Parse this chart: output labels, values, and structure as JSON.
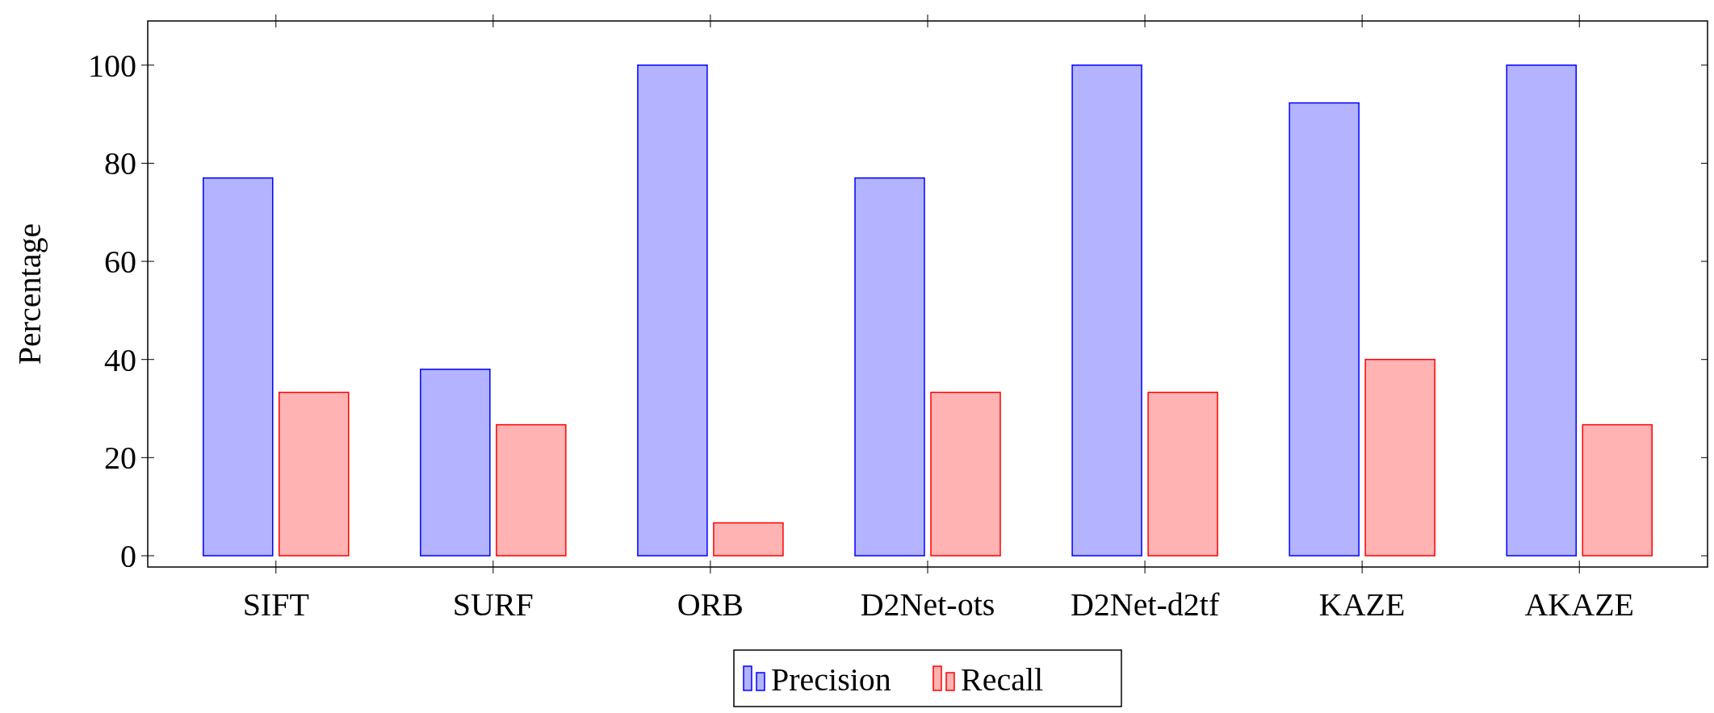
{
  "chart_data": {
    "type": "bar",
    "ylabel": "Percentage",
    "categories": [
      "SIFT",
      "SURF",
      "ORB",
      "D2Net-ots",
      "D2Net-d2tf",
      "KAZE",
      "AKAZE"
    ],
    "series": [
      {
        "name": "Precision",
        "color": "#b3b3ff",
        "values": [
          77,
          38,
          100,
          77,
          100,
          92.3,
          100
        ]
      },
      {
        "name": "Recall",
        "color": "#ffb3b3",
        "values": [
          33.3,
          26.7,
          6.7,
          33.3,
          33.3,
          40,
          26.7
        ]
      }
    ],
    "ylim": [
      -2.3,
      109
    ],
    "yticks": [
      0,
      20,
      40,
      60,
      80,
      100
    ],
    "grid": false,
    "legend": "bottom"
  }
}
